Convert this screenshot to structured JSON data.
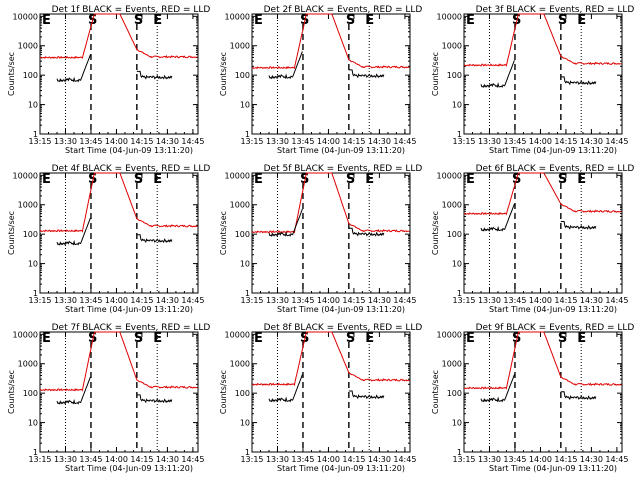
{
  "chart_data": {
    "type": "line",
    "x_tick_labels": [
      "13:15",
      "13:30",
      "13:45",
      "14:00",
      "14:15",
      "14:30",
      "14:45"
    ],
    "xlim_minutes": [
      13.25,
      14.8
    ],
    "y_tick_labels": [
      "1",
      "10",
      "100",
      "1000",
      "10000"
    ],
    "ylim": [
      1,
      12000
    ],
    "y_scale": "log",
    "ylabel": "Counts/sec",
    "xlabel": "Start Time (04-Jun-09 13:11:20)",
    "colors": {
      "events": "#000000",
      "lld": "#e00000"
    },
    "dotted_x": [
      13.5,
      14.4
    ],
    "dashed_x": [
      13.75,
      14.2
    ],
    "edge_labels": [
      "E",
      "S",
      "S",
      "E"
    ],
    "panels": [
      {
        "title": "Det 1f BLACK = Events, RED = LLD",
        "lld_base": 400,
        "lld_post": 420,
        "evt_base": 70,
        "evt_post": 85
      },
      {
        "title": "Det 2f BLACK = Events, RED = LLD",
        "lld_base": 180,
        "lld_post": 190,
        "evt_base": 90,
        "evt_post": 95
      },
      {
        "title": "Det 3f BLACK = Events, RED = LLD",
        "lld_base": 220,
        "lld_post": 250,
        "evt_base": 45,
        "evt_post": 55
      },
      {
        "title": "Det 4f BLACK = Events, RED = LLD",
        "lld_base": 130,
        "lld_post": 190,
        "evt_base": 50,
        "evt_post": 60
      },
      {
        "title": "Det 5f BLACK = Events, RED = LLD",
        "lld_base": 120,
        "lld_post": 130,
        "evt_base": 100,
        "evt_post": 100
      },
      {
        "title": "Det 6f BLACK = Events, RED = LLD",
        "lld_base": 500,
        "lld_post": 600,
        "evt_base": 150,
        "evt_post": 170
      },
      {
        "title": "Det 7f BLACK = Events, RED = LLD",
        "lld_base": 130,
        "lld_post": 160,
        "evt_base": 50,
        "evt_post": 55
      },
      {
        "title": "Det 8f BLACK = Events, RED = LLD",
        "lld_base": 200,
        "lld_post": 280,
        "evt_base": 60,
        "evt_post": 75
      },
      {
        "title": "Det 9f BLACK = Events, RED = LLD",
        "lld_base": 150,
        "lld_post": 200,
        "evt_base": 60,
        "evt_post": 70
      }
    ]
  }
}
